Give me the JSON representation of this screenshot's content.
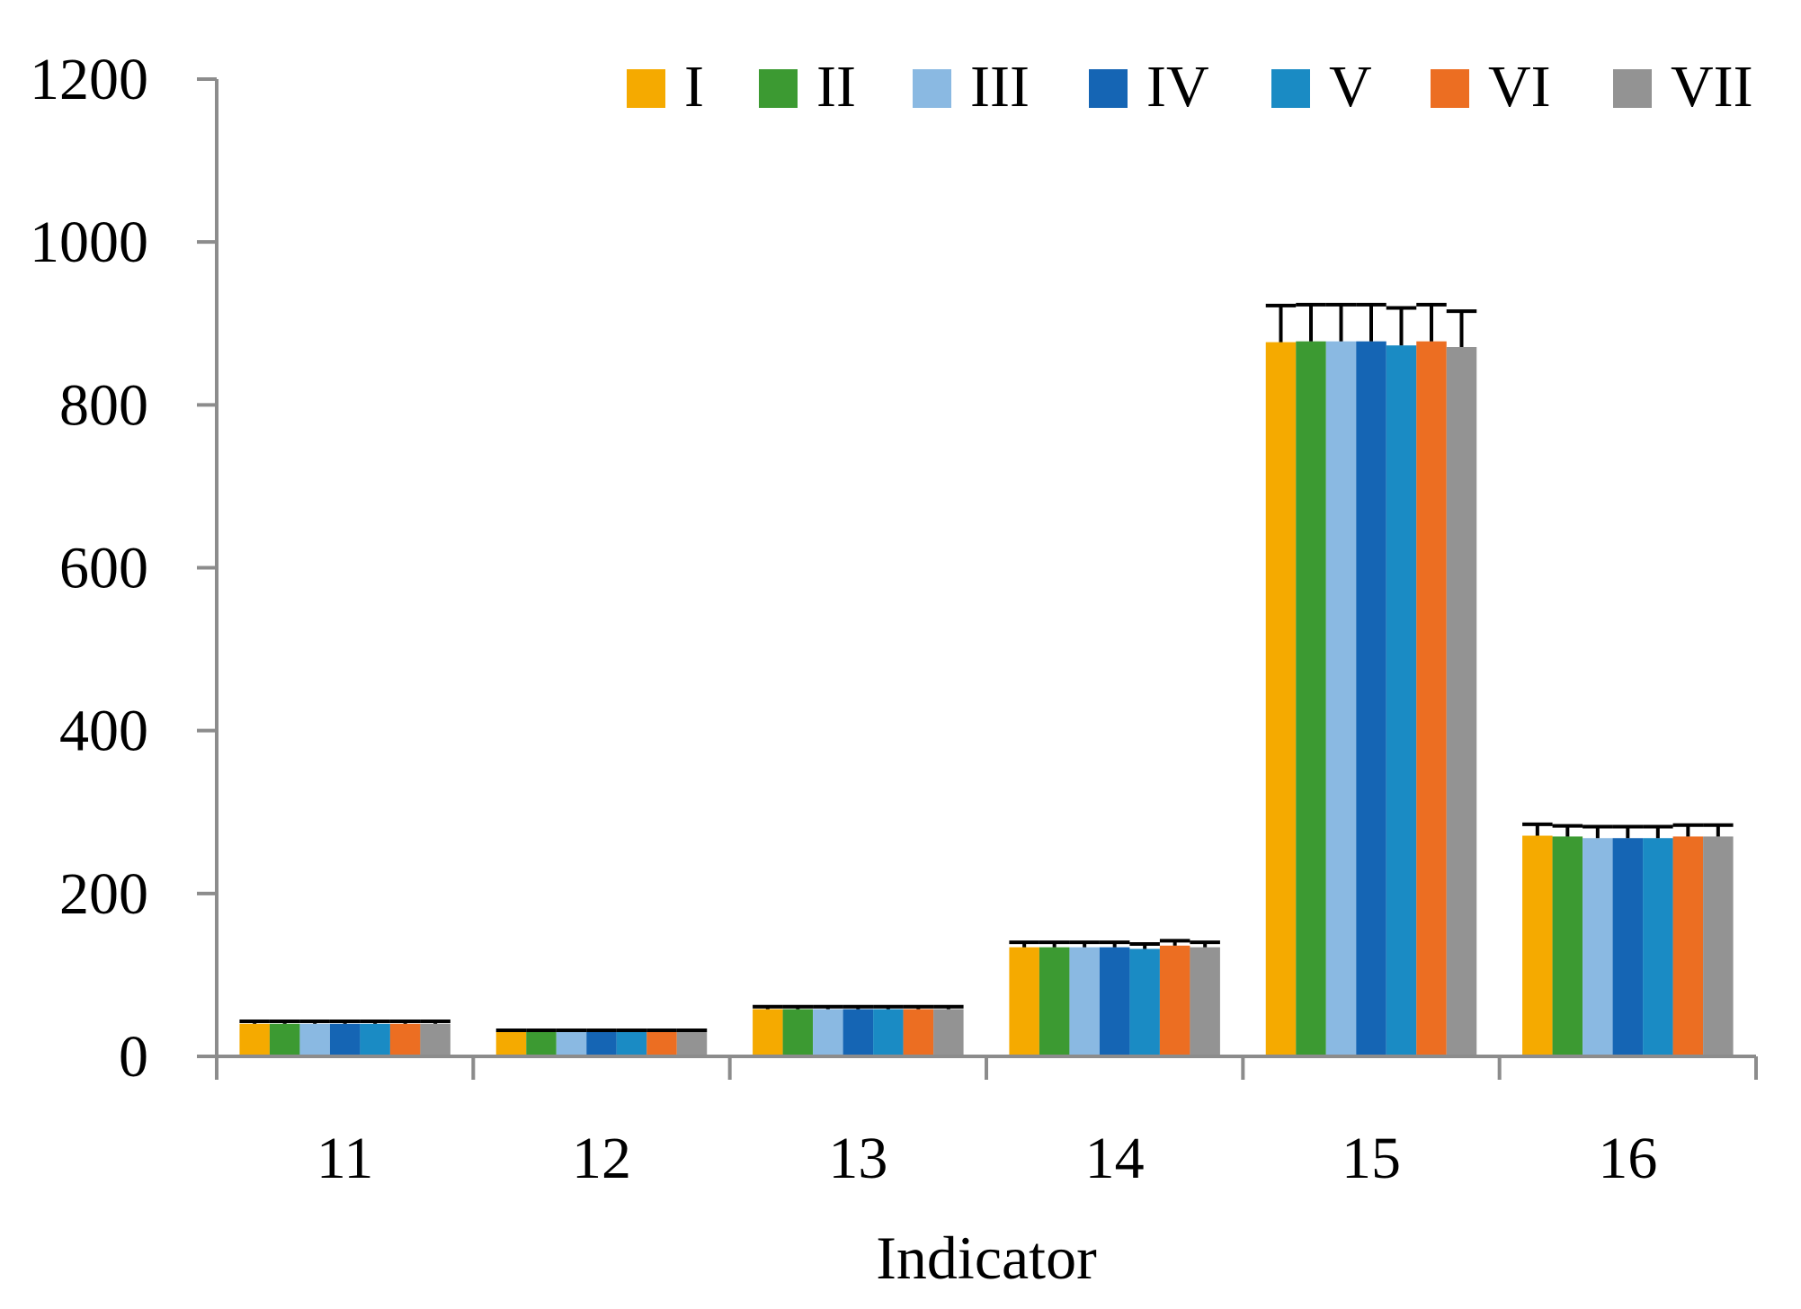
{
  "chart_data": {
    "type": "bar",
    "title": "",
    "xlabel": "Indicator",
    "ylabel": "",
    "ylim": [
      0,
      1200
    ],
    "yticks": [
      0,
      200,
      400,
      600,
      800,
      1000,
      1200
    ],
    "ytick_labels": [
      "0",
      "200",
      "400",
      "600",
      "800",
      "1000",
      "1200"
    ],
    "categories": [
      "11",
      "12",
      "13",
      "14",
      "15",
      "16"
    ],
    "legend_position": "top-right",
    "grid": false,
    "series": [
      {
        "name": "I",
        "color": "#F5AA00",
        "values": [
          40,
          30,
          58,
          134,
          877,
          271
        ],
        "errors": [
          3,
          2,
          3,
          6,
          45,
          14
        ]
      },
      {
        "name": "II",
        "color": "#3C9A32",
        "values": [
          40,
          30,
          58,
          134,
          878,
          270
        ],
        "errors": [
          3,
          2,
          3,
          6,
          45,
          13
        ]
      },
      {
        "name": "III",
        "color": "#8AB9E2",
        "values": [
          40,
          30,
          58,
          134,
          878,
          268
        ],
        "errors": [
          3,
          2,
          3,
          6,
          45,
          14
        ]
      },
      {
        "name": "IV",
        "color": "#1565B4",
        "values": [
          40,
          30,
          58,
          134,
          878,
          268
        ],
        "errors": [
          3,
          2,
          3,
          6,
          45,
          14
        ]
      },
      {
        "name": "V",
        "color": "#1A8BC4",
        "values": [
          40,
          30,
          58,
          132,
          873,
          268
        ],
        "errors": [
          3,
          2,
          3,
          6,
          46,
          14
        ]
      },
      {
        "name": "VI",
        "color": "#EC6E22",
        "values": [
          40,
          30,
          58,
          136,
          878,
          270
        ],
        "errors": [
          3,
          2,
          3,
          6,
          45,
          14
        ]
      },
      {
        "name": "VII",
        "color": "#939393",
        "values": [
          40,
          30,
          58,
          134,
          871,
          270
        ],
        "errors": [
          3,
          2,
          3,
          6,
          44,
          14
        ]
      }
    ]
  }
}
